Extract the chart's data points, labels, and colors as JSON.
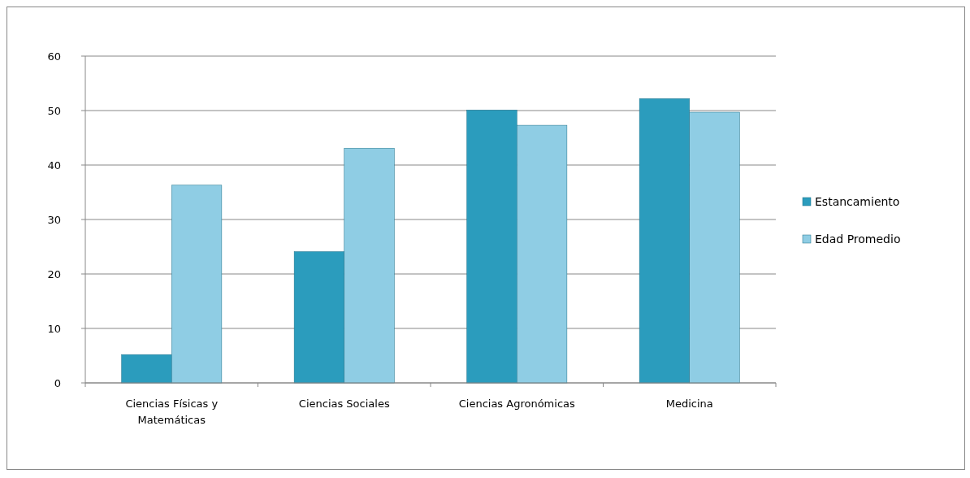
{
  "chart_data": {
    "type": "bar",
    "categories": [
      "Ciencias Físicas y Matemáticas",
      "Ciencias Sociales",
      "Ciencias Agronómicas",
      "Medicina"
    ],
    "series": [
      {
        "name": "Estancamiento",
        "color": "#2b9cbd",
        "values": [
          5.2,
          24.1,
          50.1,
          52.2
        ]
      },
      {
        "name": "Edad Promedio",
        "color": "#8fcde4",
        "values": [
          36.3,
          43.1,
          47.3,
          49.7
        ]
      }
    ],
    "ylim": [
      0,
      60
    ],
    "yticks": [
      0,
      10,
      20,
      30,
      40,
      50,
      60
    ],
    "grid": "y",
    "legend": "right"
  }
}
